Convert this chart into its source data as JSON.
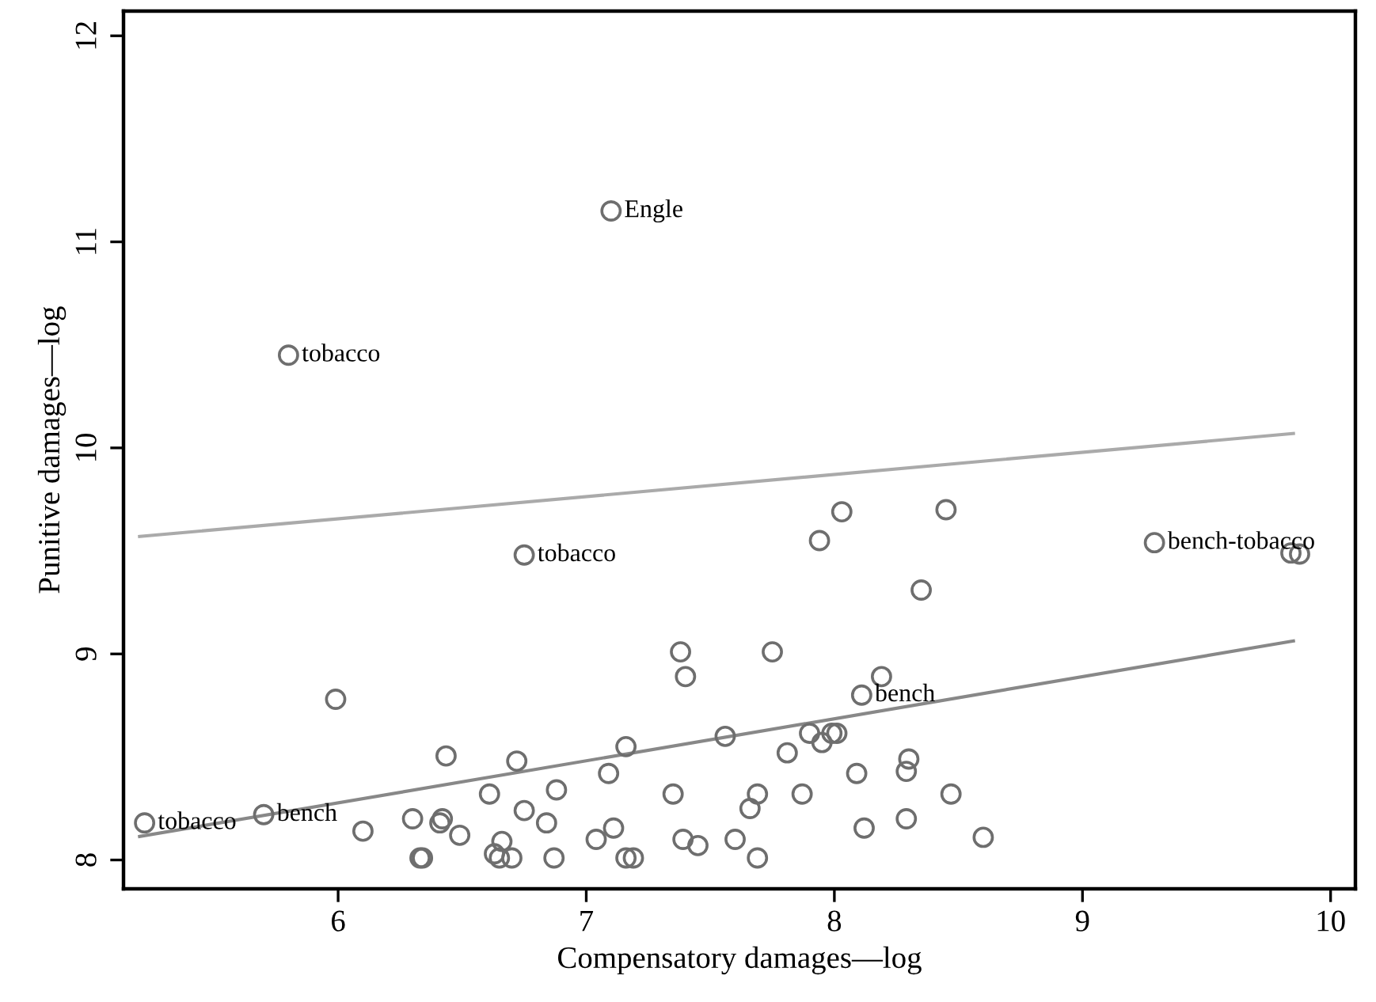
{
  "chart_data": {
    "type": "scatter",
    "xlabel": "Compensatory damages—log",
    "ylabel": "Punitive damages—log",
    "xlim": [
      5.135,
      10.1
    ],
    "ylim": [
      7.86,
      12.12
    ],
    "xticks": [
      6,
      7,
      8,
      9,
      10
    ],
    "yticks": [
      8,
      9,
      10,
      11,
      12
    ],
    "grid": false,
    "series": [
      {
        "color": "#6e6e6e",
        "marker": "circle",
        "x": [
          7.1,
          5.8,
          6.75,
          5.22,
          5.7,
          8.45,
          9.84,
          9.875,
          9.29,
          8.03,
          7.94,
          8.35,
          8.19,
          8.11,
          5.99,
          6.435,
          6.72,
          6.61,
          6.88,
          6.75,
          6.84,
          7.09,
          7.16,
          7.38,
          7.4,
          7.56,
          7.35,
          7.69,
          7.66,
          6.1,
          6.3,
          6.42,
          6.41,
          6.49,
          6.33,
          6.34,
          6.66,
          6.63,
          6.65,
          6.7,
          6.87,
          7.04,
          7.11,
          7.16,
          7.19,
          7.39,
          7.45,
          7.6,
          7.69,
          7.75,
          7.9,
          7.95,
          7.99,
          8.01,
          7.81,
          8.3,
          8.29,
          8.09,
          7.87,
          8.47,
          8.12,
          8.29,
          8.6
        ],
        "values": [
          11.15,
          10.45,
          9.48,
          8.18,
          8.22,
          9.7,
          9.49,
          9.485,
          9.54,
          9.69,
          9.55,
          9.31,
          8.89,
          8.8,
          8.78,
          8.505,
          8.48,
          8.32,
          8.34,
          8.24,
          8.18,
          8.42,
          8.55,
          9.01,
          8.89,
          8.6,
          8.32,
          8.32,
          8.25,
          8.14,
          8.2,
          8.2,
          8.18,
          8.12,
          8.01,
          8.01,
          8.09,
          8.03,
          8.01,
          8.01,
          8.01,
          8.1,
          8.155,
          8.01,
          8.01,
          8.1,
          8.07,
          8.1,
          8.01,
          9.01,
          8.615,
          8.57,
          8.615,
          8.615,
          8.52,
          8.49,
          8.43,
          8.42,
          8.32,
          8.32,
          8.155,
          8.2,
          8.11
        ]
      },
      {
        "type": "line",
        "color": "#aaaaaa",
        "x": [
          5.2,
          9.85
        ],
        "values": [
          9.57,
          10.07
        ]
      },
      {
        "type": "line",
        "color": "#888888",
        "x": [
          5.2,
          9.85
        ],
        "values": [
          8.114,
          9.063
        ]
      }
    ],
    "annotations": [
      {
        "text": "Engle",
        "x": 7.1,
        "y": 11.15
      },
      {
        "text": "tobacco",
        "x": 5.8,
        "y": 10.45
      },
      {
        "text": "tobacco",
        "x": 6.75,
        "y": 9.48
      },
      {
        "text": "tobacco",
        "x": 5.22,
        "y": 8.18
      },
      {
        "text": "bench",
        "x": 5.7,
        "y": 8.22
      },
      {
        "text": "bench",
        "x": 8.11,
        "y": 8.8
      },
      {
        "text": "bench-tobacco",
        "x": 9.29,
        "y": 9.54
      }
    ]
  }
}
